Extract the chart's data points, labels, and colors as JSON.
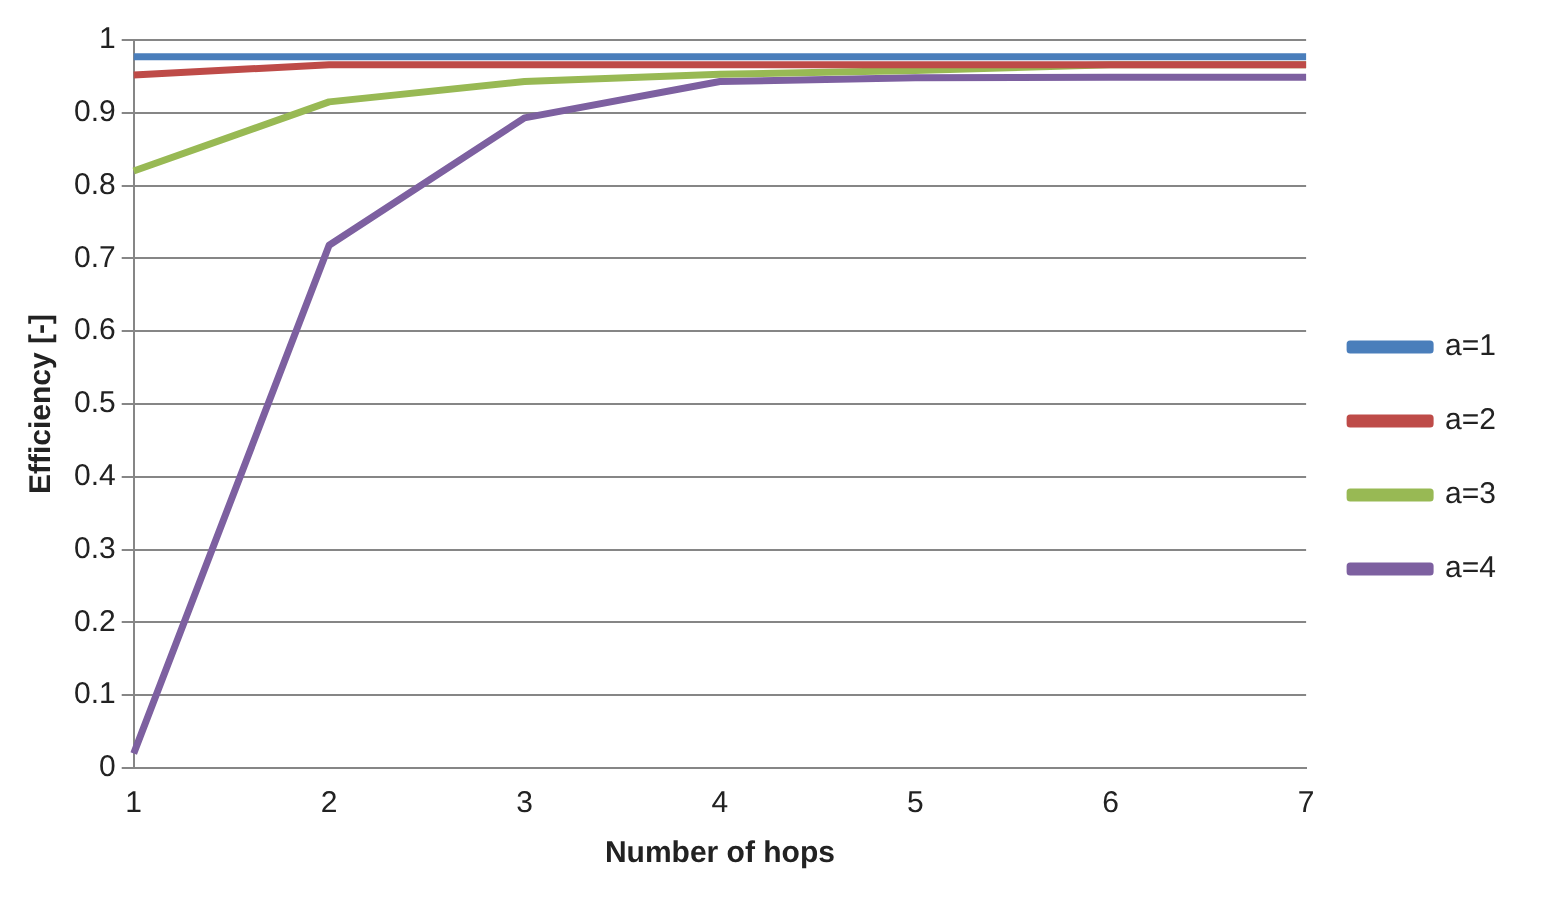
{
  "chart_data": {
    "type": "line",
    "xlabel": "Number of hops",
    "ylabel": "Efficiency [-]",
    "categories": [
      "1",
      "2",
      "3",
      "4",
      "5",
      "6",
      "7"
    ],
    "series": [
      {
        "name": "a=1",
        "color": "#4a7ebb",
        "values": [
          0.977,
          0.977,
          0.977,
          0.977,
          0.977,
          0.977,
          0.977
        ]
      },
      {
        "name": "a=2",
        "color": "#be4b48",
        "values": [
          0.952,
          0.966,
          0.966,
          0.966,
          0.966,
          0.966,
          0.966
        ]
      },
      {
        "name": "a=3",
        "color": "#98b954",
        "values": [
          0.82,
          0.915,
          0.943,
          0.953,
          0.958,
          0.966,
          0.966
        ]
      },
      {
        "name": "a=4",
        "color": "#7d60a0",
        "values": [
          0.02,
          0.718,
          0.893,
          0.943,
          0.948,
          0.949,
          0.949
        ]
      }
    ],
    "ylim": [
      0,
      1
    ],
    "yticks": [
      0,
      0.1,
      0.2,
      0.3,
      0.4,
      0.5,
      0.6,
      0.7,
      0.8,
      0.9,
      1
    ],
    "grid": "y",
    "legend": "right",
    "marker": "none",
    "line_style": "solid"
  }
}
